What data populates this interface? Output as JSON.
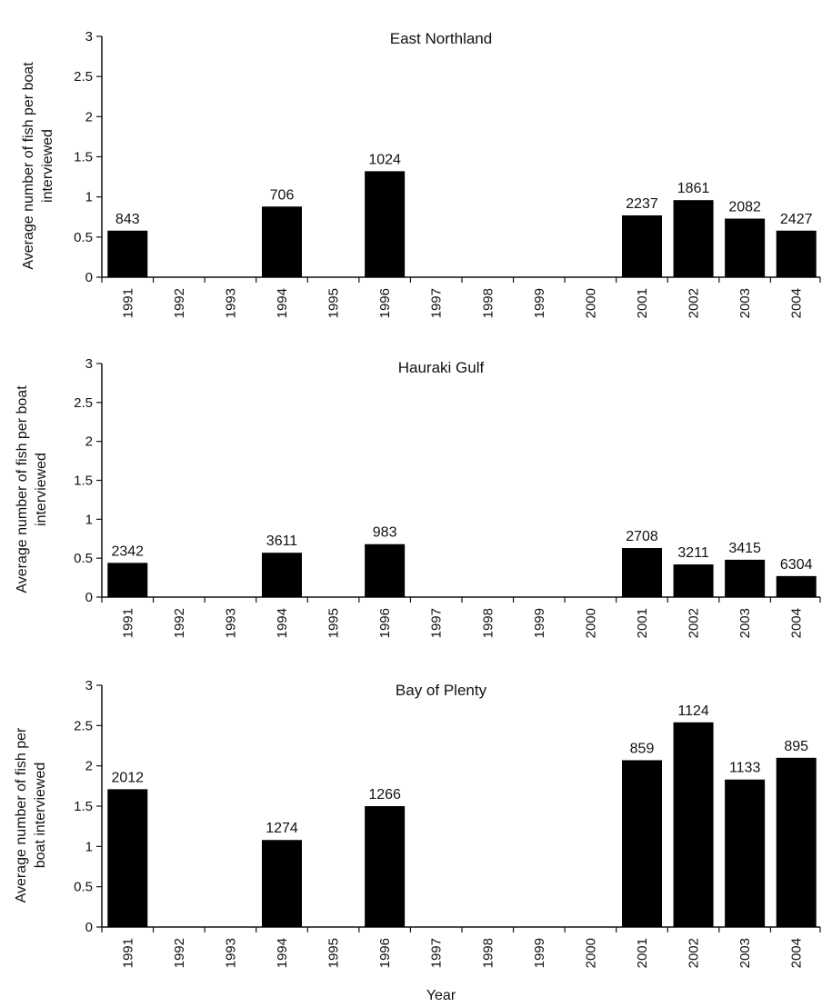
{
  "figure": {
    "xlabel": "Year"
  },
  "chart_data": [
    {
      "type": "bar",
      "title": "East Northland",
      "ylabel": [
        "Average  number of fish  per boat",
        "interviewed"
      ],
      "xlabel": "",
      "ylim": [
        0,
        3
      ],
      "yticks": [
        "0",
        "0.5",
        "1",
        "1.5",
        "2",
        "2.5",
        "3"
      ],
      "categories": [
        "1991",
        "1992",
        "1993",
        "1994",
        "1995",
        "1996",
        "1997",
        "1998",
        "1999",
        "2000",
        "2001",
        "2002",
        "2003",
        "2004"
      ],
      "values": [
        0.58,
        0,
        0,
        0.88,
        0,
        1.32,
        0,
        0,
        0,
        0,
        0.77,
        0.96,
        0.73,
        0.58
      ],
      "data_labels": [
        "843",
        "",
        "",
        "706",
        "",
        "1024",
        "",
        "",
        "",
        "",
        "2237",
        "1861",
        "2082",
        "2427"
      ],
      "grid": false
    },
    {
      "type": "bar",
      "title": "Hauraki Gulf",
      "ylabel": [
        "Average  number of fish  per boat",
        "interviewed"
      ],
      "xlabel": "",
      "ylim": [
        0,
        3
      ],
      "yticks": [
        "0",
        "0.5",
        "1",
        "1.5",
        "2",
        "2.5",
        "3"
      ],
      "categories": [
        "1991",
        "1992",
        "1993",
        "1994",
        "1995",
        "1996",
        "1997",
        "1998",
        "1999",
        "2000",
        "2001",
        "2002",
        "2003",
        "2004"
      ],
      "values": [
        0.44,
        0,
        0,
        0.57,
        0,
        0.68,
        0,
        0,
        0,
        0,
        0.63,
        0.42,
        0.48,
        0.27
      ],
      "data_labels": [
        "2342",
        "",
        "",
        "3611",
        "",
        "983",
        "",
        "",
        "",
        "",
        "2708",
        "3211",
        "3415",
        "6304"
      ],
      "grid": false
    },
    {
      "type": "bar",
      "title": "Bay of Plenty",
      "ylabel": [
        "Average  number of fish  per",
        "boat interviewed"
      ],
      "xlabel": "Year",
      "ylim": [
        0,
        3
      ],
      "yticks": [
        "0",
        "0.5",
        "1",
        "1.5",
        "2",
        "2.5",
        "3"
      ],
      "categories": [
        "1991",
        "1992",
        "1993",
        "1994",
        "1995",
        "1996",
        "1997",
        "1998",
        "1999",
        "2000",
        "2001",
        "2002",
        "2003",
        "2004"
      ],
      "values": [
        1.71,
        0,
        0,
        1.08,
        0,
        1.5,
        0,
        0,
        0,
        0,
        2.07,
        2.54,
        1.83,
        2.1
      ],
      "data_labels": [
        "2012",
        "",
        "",
        "1274",
        "",
        "1266",
        "",
        "",
        "",
        "",
        "859",
        "1124",
        "1133",
        "895"
      ],
      "grid": false
    }
  ]
}
